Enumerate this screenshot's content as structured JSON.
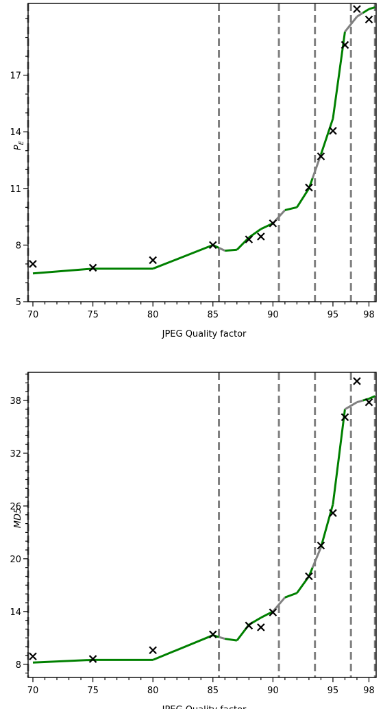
{
  "chart_data": [
    {
      "type": "line",
      "xlabel": "JPEG Quality factor",
      "ylabel": "P",
      "ylabel_sub": "E",
      "xlim": [
        69.6,
        98.6
      ],
      "ylim": [
        5,
        20.8
      ],
      "x_ticks": [
        70,
        75,
        80,
        85,
        90,
        95,
        98
      ],
      "y_ticks": [
        5,
        8,
        11,
        14,
        17
      ],
      "vlines": [
        69.6,
        85.5,
        90.5,
        93.5,
        96.5,
        98.5
      ],
      "line_color_default": "#008000",
      "line_color_highlight": "#808080",
      "highlight_intervals": [
        [
          85.5,
          86.0
        ],
        [
          90.0,
          91.0
        ],
        [
          93.3,
          94.0
        ],
        [
          96.0,
          97.5
        ]
      ],
      "series": [
        {
          "kind": "line",
          "x": [
            70,
            75,
            80,
            85,
            86,
            87,
            88,
            89,
            90,
            91,
            92,
            93,
            94,
            95,
            96,
            97,
            98,
            98.5
          ],
          "y": [
            6.5,
            6.75,
            6.75,
            8.0,
            7.7,
            7.75,
            8.4,
            8.85,
            9.15,
            9.85,
            10.0,
            11.0,
            12.8,
            14.7,
            19.3,
            20.1,
            20.5,
            20.6
          ]
        },
        {
          "kind": "scatter",
          "marker": "x",
          "x": [
            70,
            75,
            80,
            85,
            88,
            89,
            90,
            93,
            94,
            95,
            96,
            97,
            98
          ],
          "y": [
            7.0,
            6.8,
            7.2,
            8.0,
            8.3,
            8.45,
            9.15,
            11.05,
            12.7,
            14.05,
            18.6,
            20.5,
            19.95
          ]
        }
      ]
    },
    {
      "type": "line",
      "xlabel": "JPEG Quality factor",
      "ylabel": "MD5",
      "xlim": [
        69.6,
        98.6
      ],
      "ylim": [
        6.5,
        41.2
      ],
      "x_ticks": [
        70,
        75,
        80,
        85,
        90,
        95,
        98
      ],
      "y_ticks": [
        8,
        14,
        20,
        26,
        32,
        38
      ],
      "vlines": [
        69.6,
        85.5,
        90.5,
        93.5,
        96.5,
        98.5
      ],
      "line_color_default": "#008000",
      "line_color_highlight": "#808080",
      "highlight_intervals": [
        [
          85.5,
          86.0
        ],
        [
          90.0,
          91.0
        ],
        [
          93.3,
          94.0
        ],
        [
          96.0,
          97.5
        ]
      ],
      "series": [
        {
          "kind": "line",
          "x": [
            70,
            75,
            80,
            85,
            86,
            87,
            88,
            89,
            90,
            91,
            92,
            93,
            94,
            95,
            96,
            97,
            98,
            98.5
          ],
          "y": [
            8.2,
            8.5,
            8.5,
            11.3,
            10.9,
            10.7,
            12.5,
            13.3,
            14.0,
            15.6,
            16.1,
            18.0,
            21.3,
            26.2,
            37.0,
            37.8,
            38.2,
            38.5
          ]
        },
        {
          "kind": "scatter",
          "marker": "x",
          "x": [
            70,
            75,
            80,
            85,
            88,
            89,
            90,
            93,
            94,
            95,
            96,
            97,
            98
          ],
          "y": [
            8.9,
            8.6,
            9.6,
            11.4,
            12.4,
            12.2,
            13.9,
            18.0,
            21.5,
            25.2,
            36.1,
            40.2,
            37.8
          ]
        }
      ]
    }
  ]
}
